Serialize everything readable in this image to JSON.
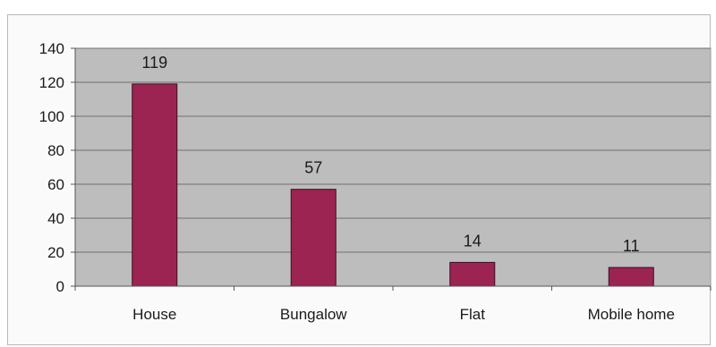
{
  "chart_data": {
    "type": "bar",
    "title": "",
    "xlabel": "",
    "ylabel": "",
    "categories": [
      "House",
      "Bungalow",
      "Flat",
      "Mobile home"
    ],
    "values": [
      119,
      57,
      14,
      11
    ],
    "data_labels": [
      "119",
      "57",
      "14",
      "11"
    ],
    "ylim": [
      0,
      140
    ],
    "yticks": [
      0,
      20,
      40,
      60,
      80,
      100,
      120,
      140
    ],
    "grid": true,
    "legend": "none",
    "colors": {
      "bar": "#9b2452",
      "bar_edge": "#3b0e22",
      "plot_background": "#bdbdbd",
      "gridline": "#6e6e6e"
    }
  }
}
